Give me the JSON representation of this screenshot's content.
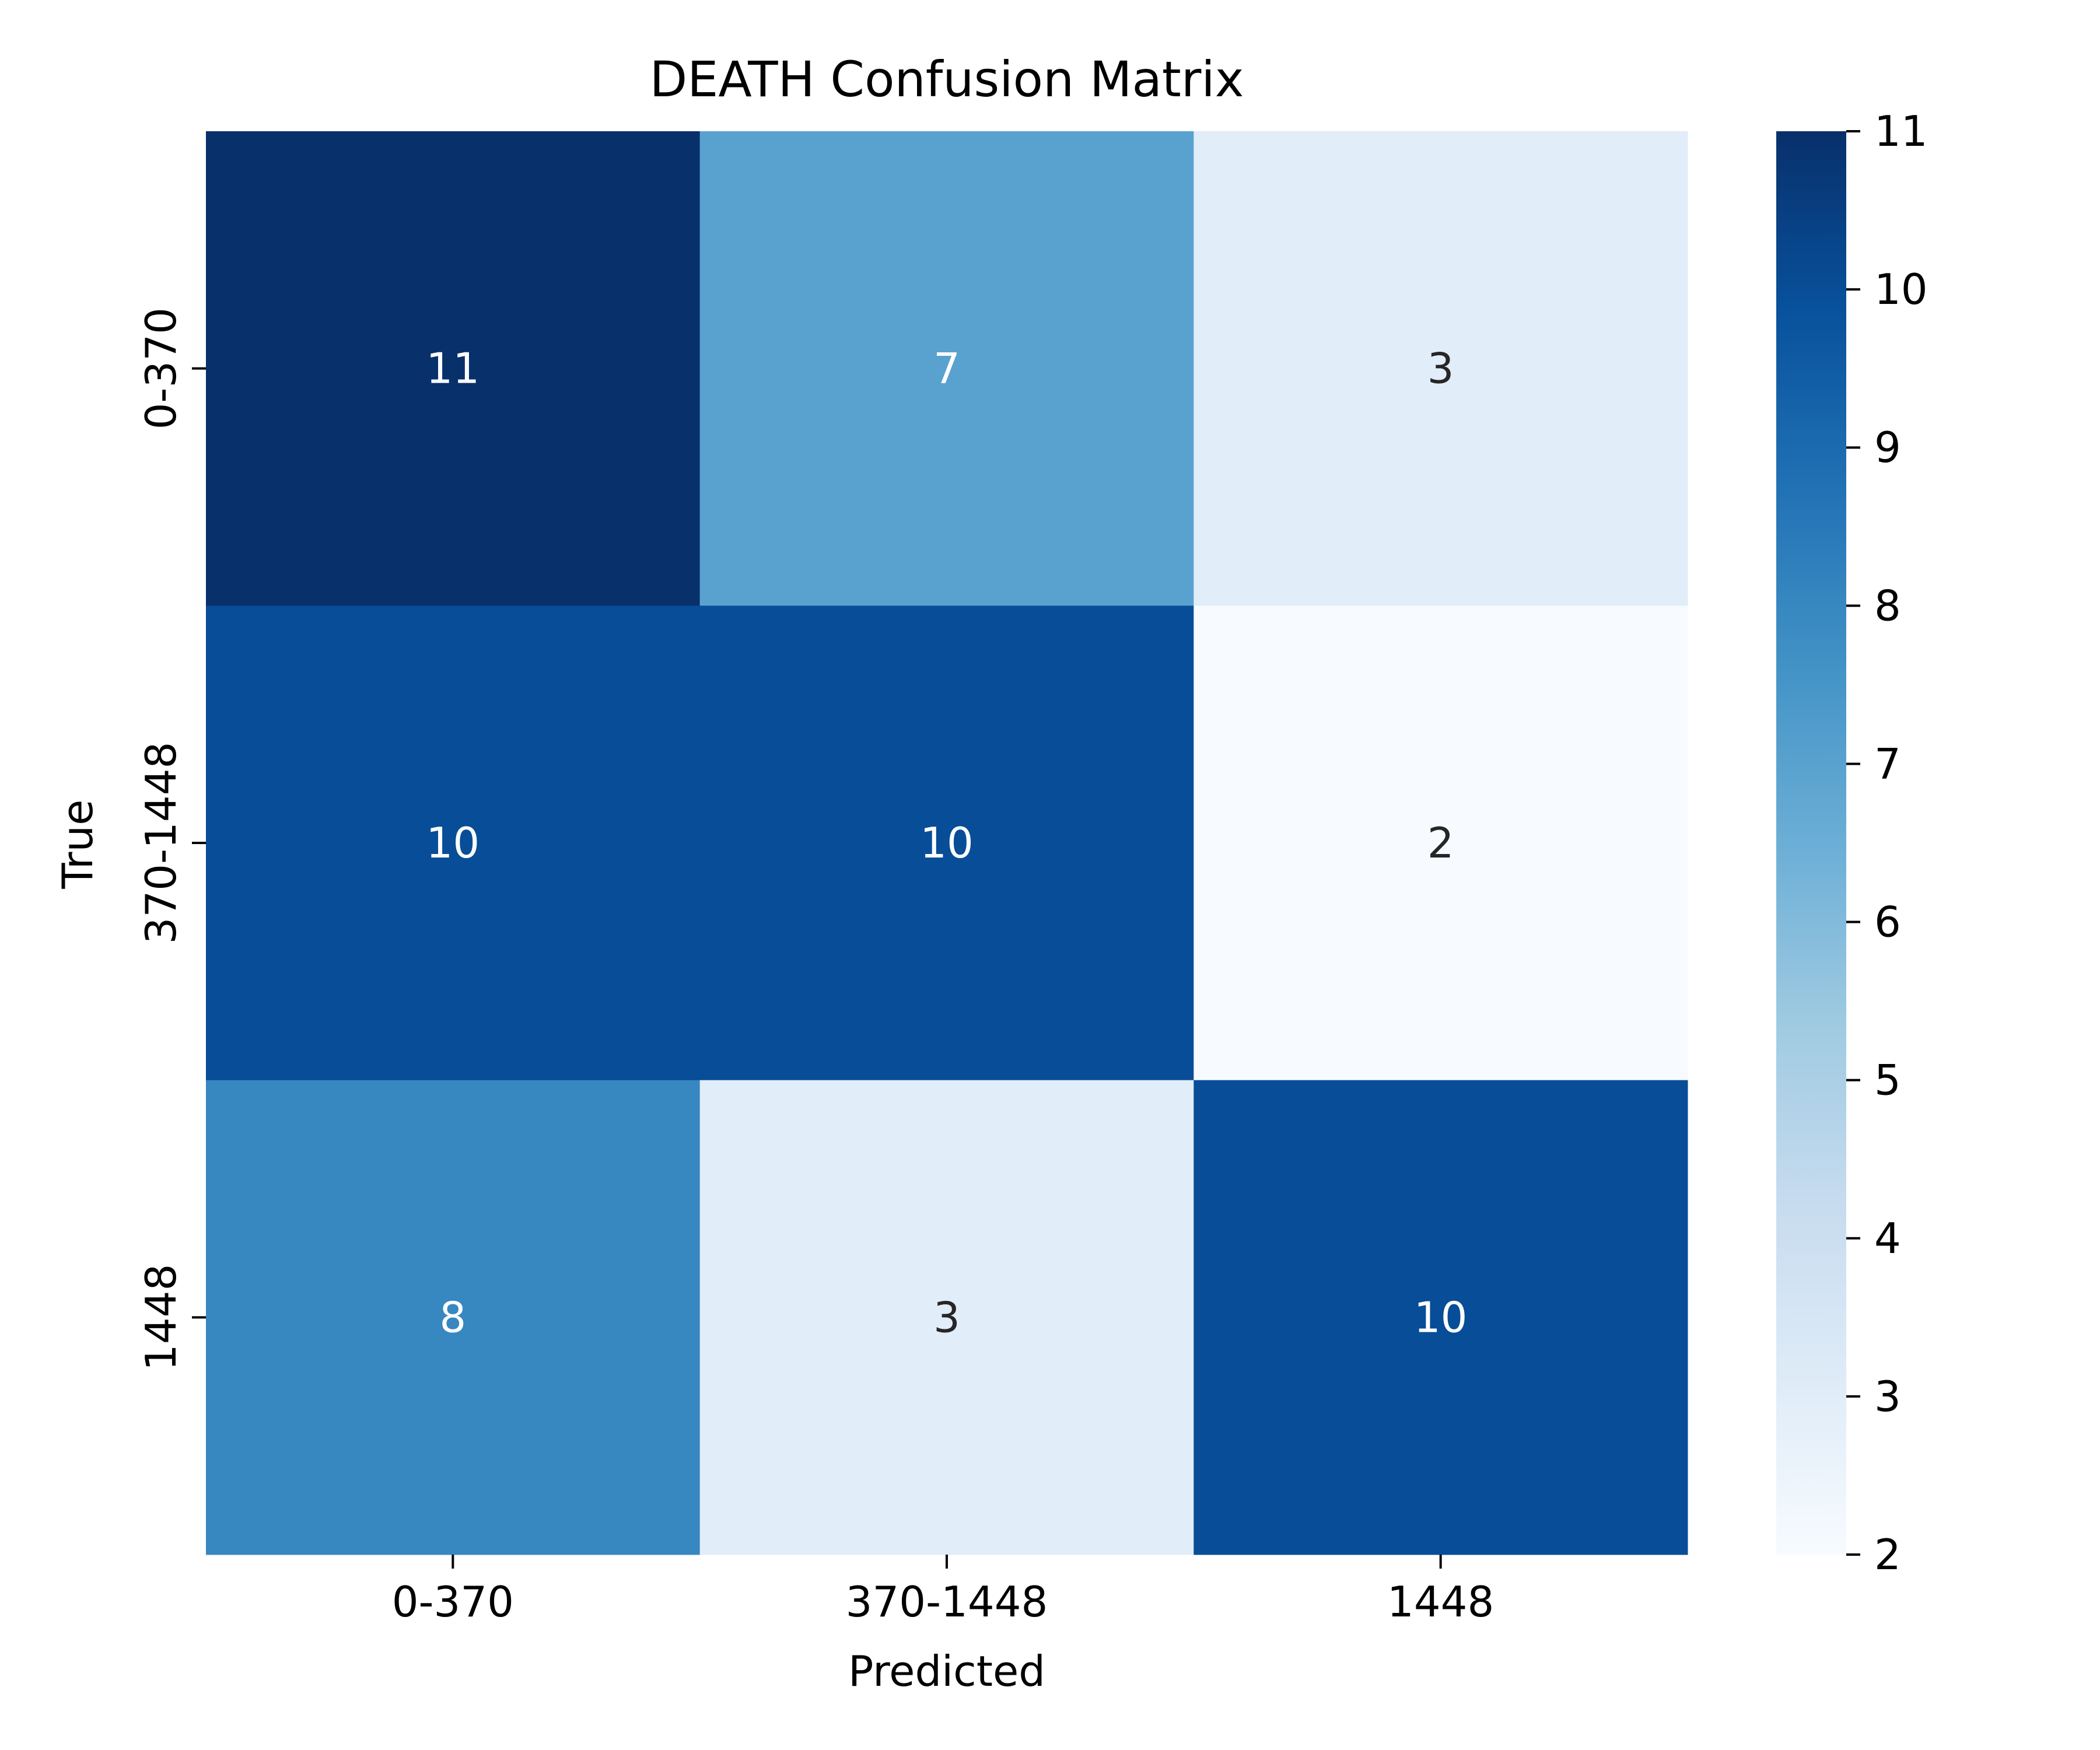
{
  "chart_data": {
    "type": "heatmap",
    "title": "DEATH Confusion Matrix",
    "xlabel": "Predicted",
    "ylabel": "True",
    "x_categories": [
      "0-370",
      "370-1448",
      "1448"
    ],
    "y_categories": [
      "0-370",
      "370-1448",
      "1448"
    ],
    "values": [
      [
        11,
        7,
        3
      ],
      [
        10,
        10,
        2
      ],
      [
        8,
        3,
        10
      ]
    ],
    "colormap": "Blues",
    "colorbar": {
      "min": 2,
      "max": 11,
      "ticks": [
        2,
        3,
        4,
        5,
        6,
        7,
        8,
        9,
        10,
        11
      ]
    },
    "grid": false
  }
}
